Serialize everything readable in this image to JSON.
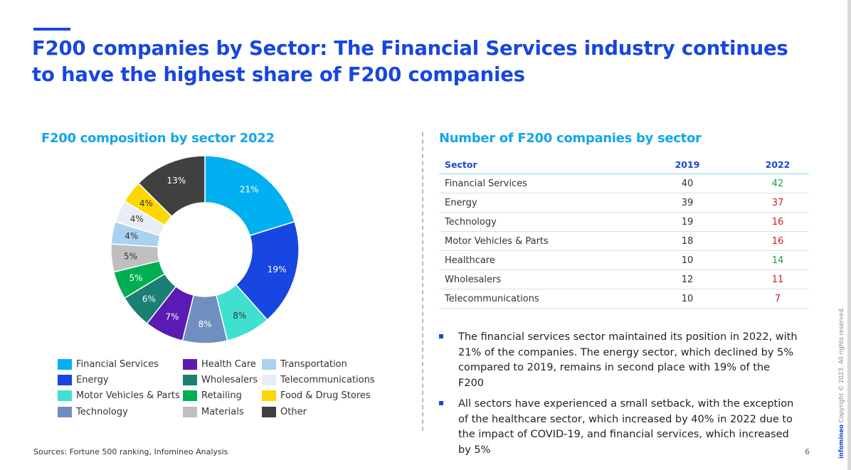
{
  "title": "F200 companies by Sector: The Financial Services industry continues to have the highest share of F200 companies",
  "chart_data": [
    {
      "type": "pie",
      "title": "F200 composition by sector 2022",
      "categories": [
        "Financial Services",
        "Energy",
        "Motor Vehicles & Parts",
        "Technology",
        "Health Care",
        "Wholesalers",
        "Retailing",
        "Materials",
        "Transportation",
        "Telecommunications",
        "Food & Drug Stores",
        "Other"
      ],
      "values": [
        21,
        19,
        8,
        8,
        7,
        6,
        5,
        5,
        4,
        4,
        4,
        13
      ],
      "value_labels": [
        "21%",
        "19%",
        "8%",
        "8%",
        "7%",
        "6%",
        "5%",
        "5%",
        "4%",
        "4%",
        "4%",
        "13%"
      ],
      "colors": [
        "#00b0f0",
        "#1746e0",
        "#40e0d0",
        "#6f8fbf",
        "#5b1ab2",
        "#1a7f75",
        "#00b050",
        "#bfbfbf",
        "#a9d2f0",
        "#e8ecf5",
        "#ffd700",
        "#404040"
      ],
      "label_colors": [
        "#ffffff",
        "#ffffff",
        "#333333",
        "#ffffff",
        "#ffffff",
        "#ffffff",
        "#ffffff",
        "#333333",
        "#333333",
        "#333333",
        "#333333",
        "#ffffff"
      ],
      "hole": true,
      "legend_position": "bottom"
    },
    {
      "type": "table",
      "title": "Number of F200 companies by sector",
      "columns": [
        "Sector",
        "2019",
        "2022"
      ],
      "rows": [
        {
          "sector": "Financial Services",
          "v2019": "40",
          "v2022": "42",
          "trend": "up"
        },
        {
          "sector": "Energy",
          "v2019": "39",
          "v2022": "37",
          "trend": "down"
        },
        {
          "sector": "Technology",
          "v2019": "19",
          "v2022": "16",
          "trend": "down"
        },
        {
          "sector": "Motor Vehicles & Parts",
          "v2019": "18",
          "v2022": "16",
          "trend": "down"
        },
        {
          "sector": "Healthcare",
          "v2019": "10",
          "v2022": "14",
          "trend": "up"
        },
        {
          "sector": "Wholesalers",
          "v2019": "12",
          "v2022": "11",
          "trend": "down"
        },
        {
          "sector": "Telecommunications",
          "v2019": "10",
          "v2022": "7",
          "trend": "down"
        }
      ]
    }
  ],
  "bullets": [
    "The financial services sector maintained its position in 2022, with 21% of the companies. The energy sector, which declined by 5% compared to 2019, remains in second place with 19% of the F200",
    "All sectors have experienced a small setback, with the exception of the healthcare sector, which increased by 40% in 2022 due to the impact of COVID-19, and financial services, which increased by 5%"
  ],
  "colors": {
    "title": "#1746e0",
    "section_title": "#13a6ea",
    "increase": "#1aa24a",
    "decrease": "#d01d1d"
  },
  "footer": {
    "source": "Sources: Fortune 500 ranking, Infomineo Analysis",
    "page": "6",
    "brand": "infomineo",
    "copyright": "Copyright © 2023. All rights reserved."
  }
}
